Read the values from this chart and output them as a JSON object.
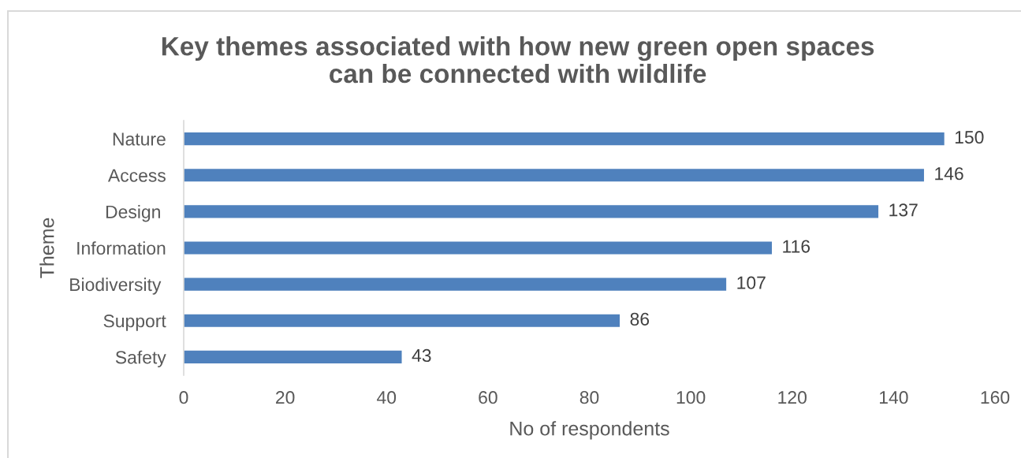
{
  "chart_data": {
    "type": "bar",
    "orientation": "horizontal",
    "title": "Key themes associated with how new green open spaces\ncan be connected with wildlife",
    "xlabel": "No of respondents",
    "ylabel": "Theme",
    "categories": [
      "Nature",
      "Access",
      "Design ",
      "Information",
      "Biodiversity ",
      "Support",
      "Safety"
    ],
    "values": [
      150,
      146,
      137,
      116,
      107,
      86,
      43
    ],
    "color": "#4f81bd",
    "xlim": [
      0,
      160
    ],
    "xticks": [
      0,
      20,
      40,
      60,
      80,
      100,
      120,
      140,
      160
    ],
    "data_labels": true,
    "grid": false,
    "legend": false
  }
}
